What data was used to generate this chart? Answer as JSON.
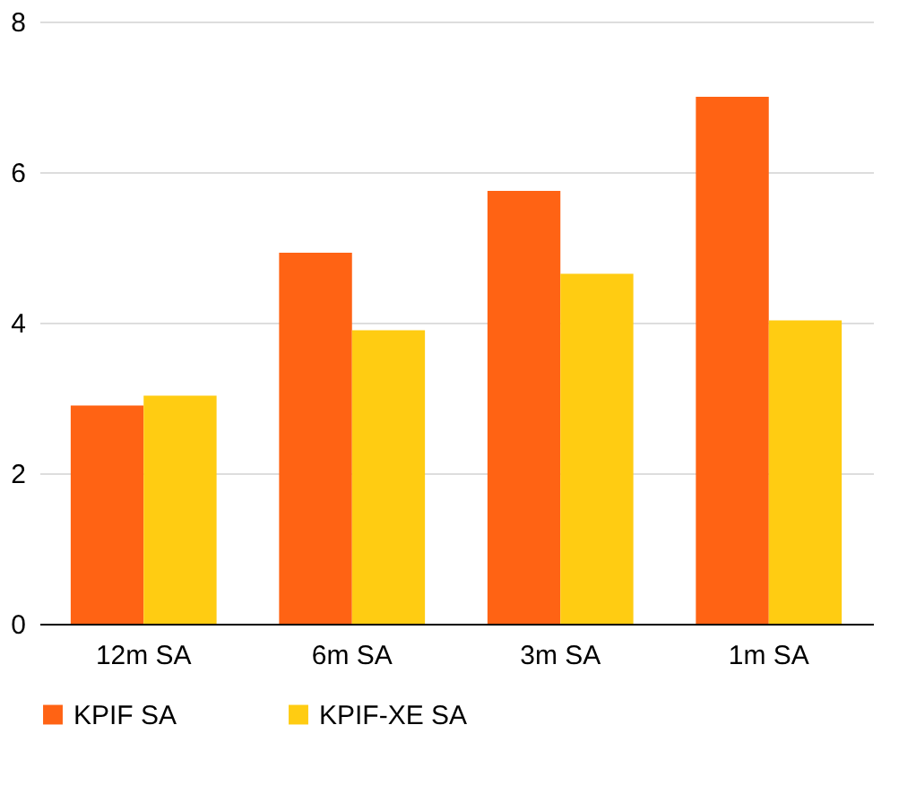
{
  "chart_data": {
    "type": "bar",
    "categories": [
      "12m SA",
      "6m SA",
      "3m SA",
      "1m SA"
    ],
    "series": [
      {
        "name": "KPIF SA",
        "color": "#ff6314",
        "values": [
          2.9,
          4.93,
          5.75,
          7.0
        ]
      },
      {
        "name": "KPIF-XE SA",
        "color": "#ffcc12",
        "values": [
          3.03,
          3.9,
          4.65,
          4.03
        ]
      }
    ],
    "ylim": [
      0,
      8
    ],
    "yticks": [
      0,
      2,
      4,
      6,
      8
    ],
    "grid": "y",
    "legend": "bottom"
  }
}
